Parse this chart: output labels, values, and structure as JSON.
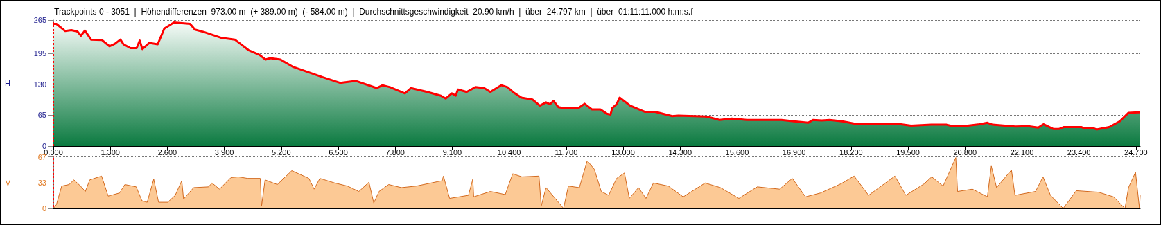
{
  "chart_data": [
    {
      "type": "area",
      "title": "Trackpoints 0 - 3051  |  Höhendifferenzen  973.00 m  (+ 389.00 m)  (- 584.00 m)  |  Durchschnittsgeschwindigkeit  20.90 km/h  |  über  24.797 km  |  über  01:11:11.000 h:m:s.f",
      "ylabel": "H",
      "x": [
        0,
        0.07,
        0.27,
        0.41,
        0.55,
        0.63,
        0.72,
        0.86,
        1.11,
        1.28,
        1.4,
        1.53,
        1.6,
        1.76,
        1.9,
        1.97,
        2.03,
        2.19,
        2.38,
        2.53,
        2.75,
        3.12,
        3.23,
        3.43,
        3.82,
        4.14,
        4.45,
        4.7,
        4.84,
        4.95,
        5.18,
        5.46,
        5.8,
        6.14,
        6.54,
        6.9,
        7.38,
        7.51,
        7.68,
        8.02,
        8.16,
        8.53,
        8.84,
        8.95,
        9.09,
        9.18,
        9.23,
        9.43,
        9.63,
        9.83,
        9.97,
        10.22,
        10.36,
        10.51,
        10.68,
        10.93,
        11.1,
        11.24,
        11.33,
        11.41,
        11.52,
        11.64,
        11.98,
        12.12,
        12.29,
        12.48,
        12.63,
        12.71,
        12.75,
        12.85,
        12.92,
        13.16,
        13.5,
        13.73,
        14.12,
        14.26,
        14.91,
        15.2,
        15.48,
        15.82,
        16.2,
        16.61,
        16.9,
        17.22,
        17.33,
        17.53,
        17.71,
        18,
        18.29,
        18.38,
        19.34,
        19.57,
        20.03,
        20.38,
        20.47,
        20.76,
        21.13,
        21.31,
        21.43,
        21.95,
        22.24,
        22.47,
        22.59,
        22.82,
        22.94,
        23.05,
        23.46,
        23.54,
        23.72,
        23.8,
        24.09,
        24.33,
        24.53,
        24.75,
        24.797
      ],
      "series": [
        {
          "color": "#ff0000",
          "values": [
            257,
            257,
            242,
            244,
            241,
            232,
            243,
            224,
            223,
            210,
            215,
            224,
            214,
            206,
            206,
            222,
            204,
            217,
            214,
            247,
            260,
            257,
            245,
            240,
            228,
            224,
            202,
            192,
            182,
            185,
            182,
            167,
            156,
            145,
            133,
            137,
            122,
            128,
            124,
            111,
            122,
            114,
            106,
            100,
            111,
            106,
            119,
            114,
            124,
            122,
            114,
            128,
            124,
            112,
            102,
            98,
            85,
            92,
            88,
            95,
            82,
            80,
            80,
            89,
            77,
            77,
            68,
            66,
            80,
            88,
            102,
            85,
            72,
            72,
            63,
            64,
            62,
            55,
            58,
            55,
            55,
            55,
            52,
            49,
            55,
            54,
            55,
            52,
            47,
            46,
            46,
            43,
            45,
            45,
            43,
            42,
            46,
            49,
            45,
            41,
            42,
            39,
            46,
            36,
            36,
            40,
            40,
            37,
            38,
            35,
            40,
            52,
            70,
            71,
            71
          ]
        }
      ],
      "xlim": [
        0,
        24.797
      ],
      "ylim": [
        0,
        265
      ],
      "yticks": [
        0,
        65,
        130,
        195,
        265
      ],
      "xticks": [
        {
          "value": 0,
          "label": "0.000"
        },
        {
          "value": 1.3,
          "label": "1.300"
        },
        {
          "value": 2.6,
          "label": "2.600"
        },
        {
          "value": 3.9,
          "label": "3.900"
        },
        {
          "value": 5.2,
          "label": "5.200"
        },
        {
          "value": 6.5,
          "label": "6.500"
        },
        {
          "value": 7.8,
          "label": "7.800"
        },
        {
          "value": 9.1,
          "label": "9.100"
        },
        {
          "value": 10.4,
          "label": "10.400"
        },
        {
          "value": 11.7,
          "label": "11.700"
        },
        {
          "value": 13,
          "label": "13.000"
        },
        {
          "value": 14.3,
          "label": "14.300"
        },
        {
          "value": 15.6,
          "label": "15.600"
        },
        {
          "value": 16.9,
          "label": "16.900"
        },
        {
          "value": 18.2,
          "label": "18.200"
        },
        {
          "value": 19.5,
          "label": "19.500"
        },
        {
          "value": 20.8,
          "label": "20.800"
        },
        {
          "value": 22.1,
          "label": "22.100"
        },
        {
          "value": 23.4,
          "label": "23.400"
        },
        {
          "value": 24.7,
          "label": "24.700"
        }
      ],
      "grid": "y",
      "ref_lines": [
        {
          "axis": "x",
          "value": 0,
          "color": "#ff0000",
          "line_style": "dotted"
        }
      ]
    },
    {
      "type": "area",
      "ylabel": "V",
      "x": [
        0,
        0.07,
        0.19,
        0.36,
        0.47,
        0.62,
        0.73,
        0.83,
        1.1,
        1.25,
        1.51,
        1.63,
        1.89,
        2.02,
        2.14,
        2.29,
        2.4,
        2.61,
        2.78,
        2.93,
        2.97,
        3.2,
        3.54,
        3.62,
        3.79,
        4.05,
        4.22,
        4.43,
        4.72,
        4.75,
        4.83,
        5.11,
        5.44,
        5.83,
        5.95,
        6.08,
        6.42,
        6.71,
        6.97,
        7.2,
        7.31,
        7.43,
        7.65,
        7.94,
        8.28,
        8.87,
        8.9,
        9.04,
        9.47,
        9.57,
        9.59,
        9.97,
        10.31,
        10.48,
        10.69,
        11.08,
        11.13,
        11.24,
        11.64,
        11.75,
        12,
        12.18,
        12.34,
        12.5,
        12.67,
        12.85,
        13.03,
        13.14,
        13.35,
        13.52,
        13.69,
        14.03,
        14.37,
        14.87,
        15.22,
        15.64,
        16.06,
        16.57,
        16.86,
        17.16,
        17.5,
        17.97,
        18.27,
        18.6,
        19.2,
        19.45,
        19.87,
        20.04,
        20.3,
        20.59,
        20.63,
        20.97,
        21.31,
        21.4,
        21.52,
        21.86,
        21.94,
        22.41,
        22.58,
        22.75,
        23.04,
        23.34,
        23.85,
        24.19,
        24.45,
        24.53,
        24.69,
        24.78,
        24.797
      ],
      "series": [
        {
          "color": "#d2691e",
          "values": [
            0,
            5,
            29,
            31,
            37,
            29,
            22,
            37,
            42,
            16,
            20,
            31,
            28,
            10,
            8,
            38,
            8,
            8,
            17,
            36,
            12,
            27,
            28,
            33,
            25,
            40,
            41,
            39,
            39,
            3,
            37,
            31,
            49,
            39,
            25,
            39,
            33,
            29,
            22,
            34,
            7,
            22,
            31,
            27,
            29,
            36,
            42,
            13,
            17,
            38,
            15,
            22,
            18,
            45,
            41,
            42,
            3,
            27,
            0,
            29,
            27,
            62,
            51,
            22,
            17,
            39,
            46,
            13,
            27,
            13,
            33,
            29,
            15,
            33,
            27,
            13,
            28,
            25,
            39,
            15,
            20,
            32,
            42,
            17,
            42,
            17,
            32,
            41,
            29,
            66,
            22,
            25,
            15,
            55,
            27,
            50,
            17,
            22,
            41,
            17,
            0,
            23,
            21,
            15,
            0,
            27,
            47,
            0,
            17
          ]
        }
      ],
      "xlim": [
        0,
        24.797
      ],
      "ylim": [
        0,
        67
      ],
      "yticks": [
        0,
        33,
        67
      ],
      "tick_labels": "y",
      "grid": "y",
      "ref_lines": [
        {
          "axis": "x",
          "value": 0,
          "color": "#ff0000",
          "line_style": "dotted"
        }
      ]
    }
  ]
}
